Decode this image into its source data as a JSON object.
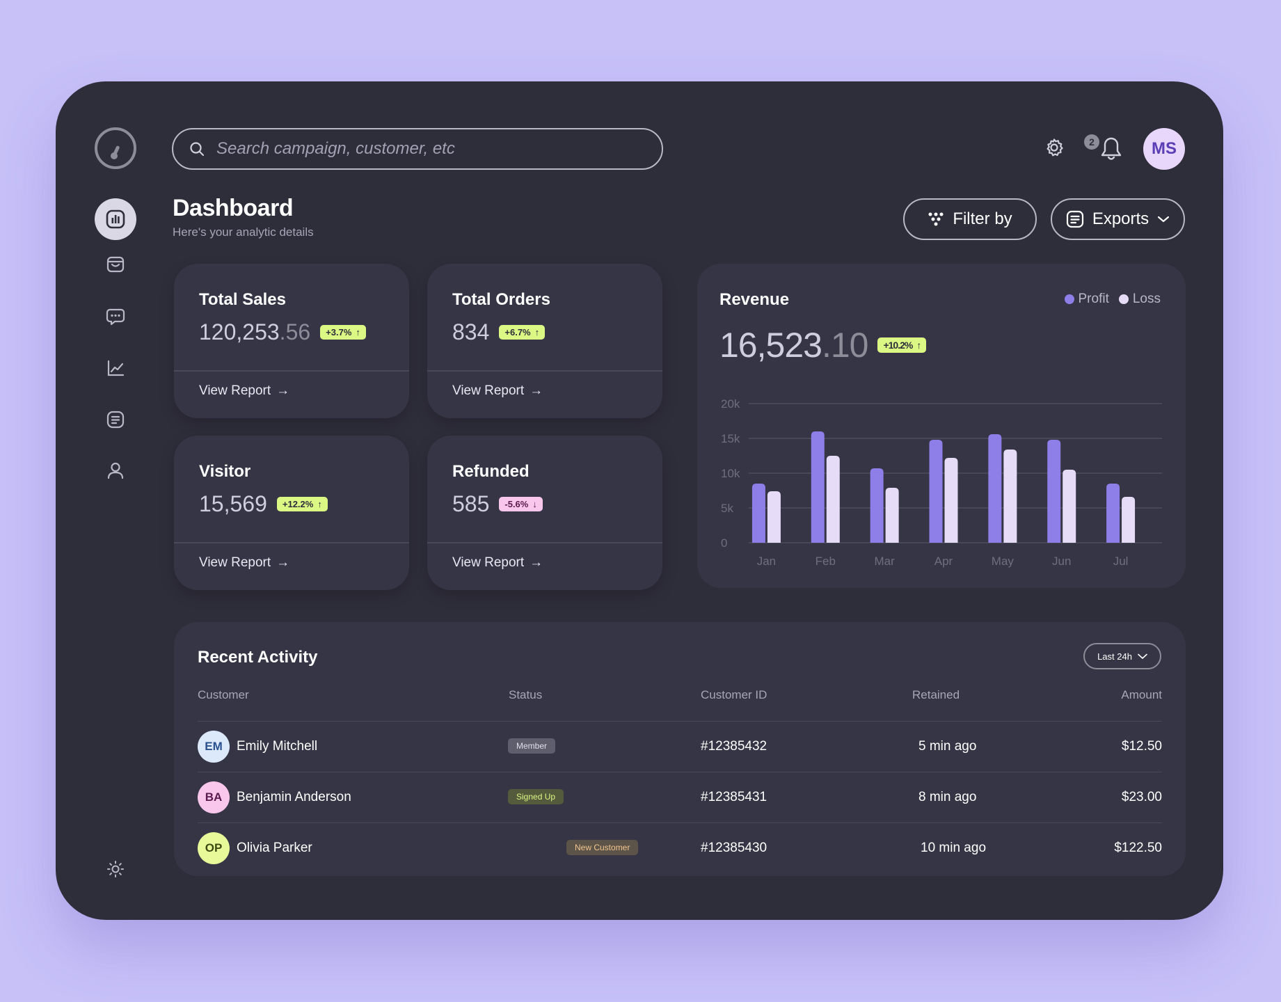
{
  "search": {
    "placeholder": "Search campaign, customer, etc"
  },
  "topbar": {
    "notification_count": "2",
    "avatar_initials": "MS"
  },
  "header": {
    "title": "Dashboard",
    "subtitle": "Here's your analytic details",
    "filter_label": "Filter by",
    "exports_label": "Exports"
  },
  "cards": [
    {
      "label": "Total Sales",
      "value_main": "120,253",
      "value_decimal": ".56",
      "change": "+3.7%",
      "trend": "up",
      "link": "View Report"
    },
    {
      "label": "Total Orders",
      "value_main": "834",
      "value_decimal": "",
      "change": "+6.7%",
      "trend": "up",
      "link": "View Report"
    },
    {
      "label": "Visitor",
      "value_main": "15,569",
      "value_decimal": "",
      "change": "+12.2%",
      "trend": "up",
      "link": "View Report"
    },
    {
      "label": "Refunded",
      "value_main": "585",
      "value_decimal": "",
      "change": "-5.6%",
      "trend": "down",
      "link": "View Report"
    }
  ],
  "revenue": {
    "title": "Revenue",
    "value_main": "16,523",
    "value_decimal": ".10",
    "change": "+10.2%",
    "legend": [
      {
        "label": "Profit",
        "color": "#8e7ee8"
      },
      {
        "label": "Loss",
        "color": "#e7dcf7"
      }
    ]
  },
  "chart_data": {
    "type": "bar",
    "title": "Revenue",
    "categories": [
      "Jan",
      "Feb",
      "Mar",
      "Apr",
      "May",
      "Jun",
      "Jul"
    ],
    "series": [
      {
        "name": "Profit",
        "values": [
          8500,
          16000,
          10700,
          14800,
          15600,
          14800,
          8500
        ]
      },
      {
        "name": "Loss",
        "values": [
          7400,
          12500,
          7900,
          12200,
          13400,
          10500,
          6600
        ]
      }
    ],
    "y_ticks": [
      "20k",
      "15k",
      "10k",
      "5k",
      "0"
    ],
    "ylim": [
      0,
      20000
    ],
    "grid": true,
    "legend_position": "top-right"
  },
  "activity": {
    "title": "Recent Activity",
    "range": "Last 24h",
    "columns": [
      "Customer",
      "Status",
      "Customer ID",
      "Retained",
      "Amount"
    ],
    "rows": [
      {
        "initials": "EM",
        "name": "Emily Mitchell",
        "status": "Member",
        "id": "#12385432",
        "retained": "5 min ago",
        "amount": "$12.50",
        "avatar_bg": "#dbe9fb",
        "avatar_fg": "#2a4f8f",
        "status_bg": "#5f5e6d",
        "status_fg": "#e0dfea"
      },
      {
        "initials": "BA",
        "name": "Benjamin Anderson",
        "status": "Signed Up",
        "id": "#12385431",
        "retained": "8 min ago",
        "amount": "$23.00",
        "avatar_bg": "#f9c7ec",
        "avatar_fg": "#5a1a4e",
        "status_bg": "#545a3c",
        "status_fg": "#dbf784"
      },
      {
        "initials": "OP",
        "name": "Olivia Parker",
        "status": "New Customer",
        "id": "#12385430",
        "retained": "10 min ago",
        "amount": "$122.50",
        "avatar_bg": "#e8f99a",
        "avatar_fg": "#3a4a10",
        "status_bg": "#5c5448",
        "status_fg": "#f3c48e"
      }
    ]
  }
}
